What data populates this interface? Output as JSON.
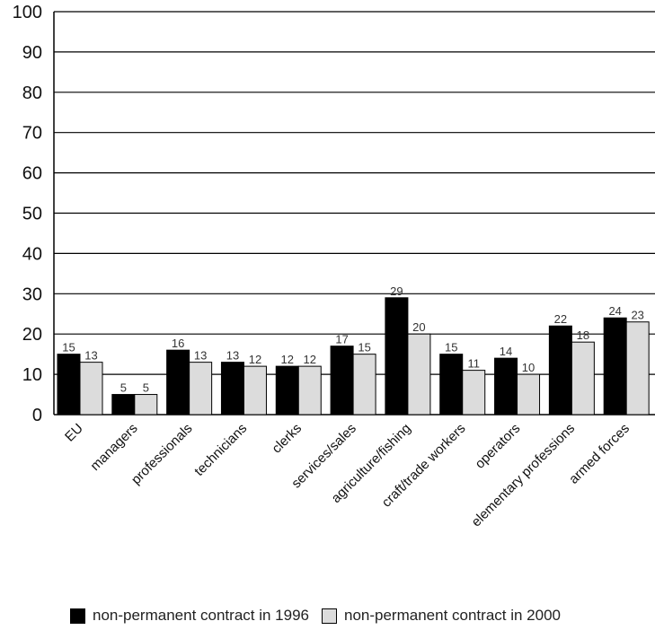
{
  "chart_data": {
    "type": "bar",
    "title": "",
    "xlabel": "",
    "ylabel": "",
    "ylim": [
      0,
      100
    ],
    "yticks": [
      0,
      10,
      20,
      30,
      40,
      50,
      60,
      70,
      80,
      90,
      100
    ],
    "grid": true,
    "legend_position": "bottom",
    "categories": [
      "EU",
      "managers",
      "professionals",
      "technicians",
      "clerks",
      "services/sales",
      "agriculture/fishing",
      "craft/trade workers",
      "operators",
      "elementary professions",
      "armed forces"
    ],
    "series": [
      {
        "name": "non-permanent contract in 1996",
        "color": "#000000",
        "values": [
          15,
          5,
          16,
          13,
          12,
          17,
          29,
          15,
          14,
          22,
          24
        ]
      },
      {
        "name": "non-permanent contract in 2000",
        "color": "#dcdcdc",
        "values": [
          13,
          5,
          13,
          12,
          12,
          15,
          20,
          11,
          10,
          18,
          23
        ]
      }
    ]
  }
}
